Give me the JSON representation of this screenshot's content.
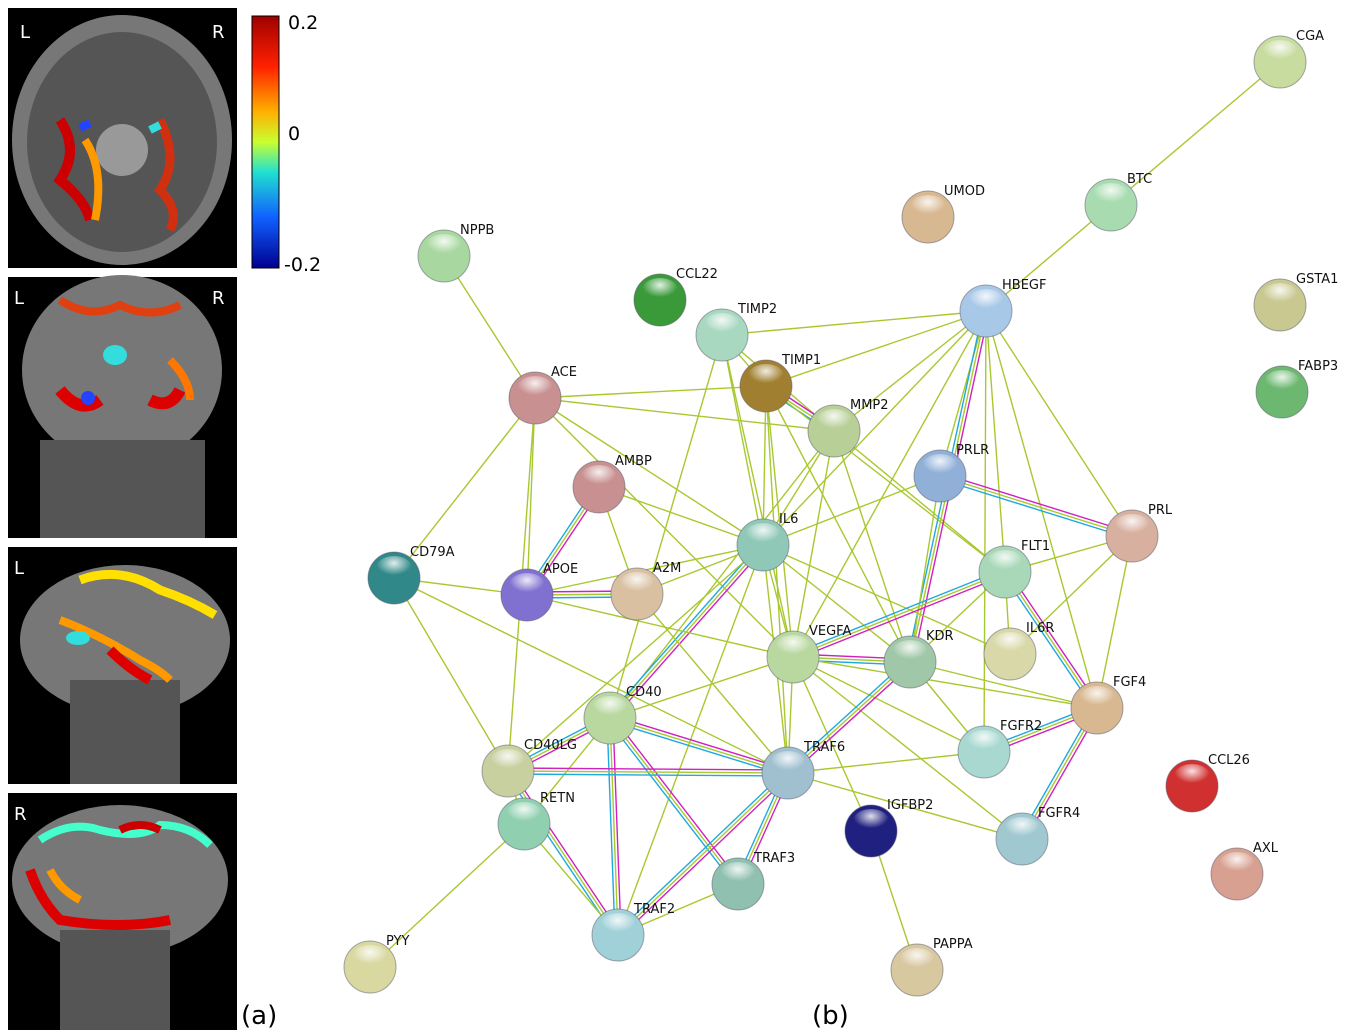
{
  "panel_a": {
    "slices": [
      {
        "left": "L",
        "right": "R"
      },
      {
        "left": "L",
        "right": "R"
      },
      {
        "left": "L"
      },
      {
        "left": "R"
      }
    ],
    "colorbar": {
      "ticks": [
        "0.2",
        "0",
        "-0.2"
      ]
    },
    "label": "(a)"
  },
  "panel_b": {
    "label": "(b)",
    "nodes": [
      "CGA",
      "UMOD",
      "BTC",
      "NPPB",
      "CCL22",
      "TIMP2",
      "HBEGF",
      "GSTA1",
      "FABP3",
      "ACE",
      "TIMP1",
      "MMP2",
      "AMBP",
      "PRLR",
      "PRL",
      "IL6",
      "CD79A",
      "APOE",
      "A2M",
      "FLT1",
      "IL6R",
      "VEGFA",
      "KDR",
      "FGF4",
      "CD40",
      "FGFR2",
      "CD40LG",
      "TRAF6",
      "CCL26",
      "RETN",
      "IGFBP2",
      "FGFR4",
      "AXL",
      "TRAF3",
      "TRAF2",
      "PYY",
      "PAPPA"
    ]
  }
}
